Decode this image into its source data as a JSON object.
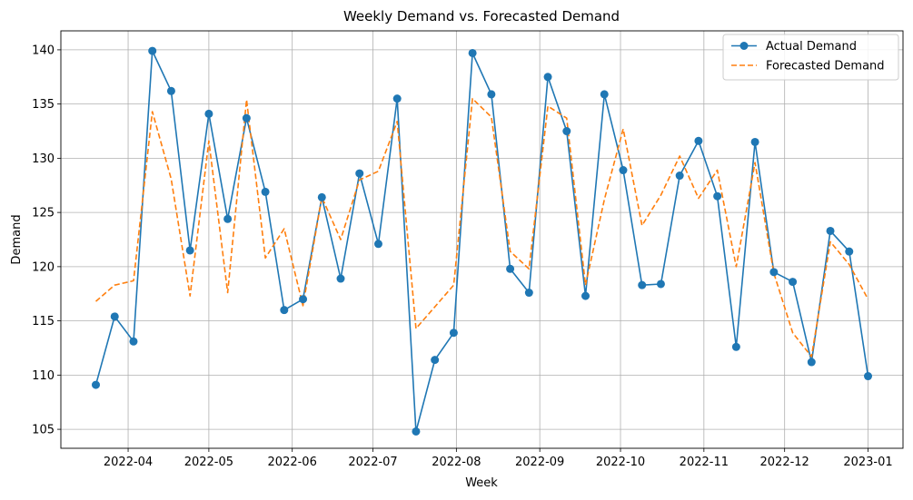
{
  "chart_data": {
    "type": "line",
    "title": "Weekly Demand vs. Forecasted Demand",
    "xlabel": "Week",
    "ylabel": "Demand",
    "x": [
      "2022-03-20",
      "2022-03-27",
      "2022-04-03",
      "2022-04-10",
      "2022-04-17",
      "2022-04-24",
      "2022-05-01",
      "2022-05-08",
      "2022-05-15",
      "2022-05-22",
      "2022-05-29",
      "2022-06-05",
      "2022-06-12",
      "2022-06-19",
      "2022-06-26",
      "2022-07-03",
      "2022-07-10",
      "2022-07-17",
      "2022-07-24",
      "2022-07-31",
      "2022-08-07",
      "2022-08-14",
      "2022-08-21",
      "2022-08-28",
      "2022-09-04",
      "2022-09-11",
      "2022-09-18",
      "2022-09-25",
      "2022-10-02",
      "2022-10-09",
      "2022-10-16",
      "2022-10-23",
      "2022-10-30",
      "2022-11-06",
      "2022-11-13",
      "2022-11-20",
      "2022-11-27",
      "2022-12-04",
      "2022-12-11",
      "2022-12-18",
      "2022-12-25",
      "2023-01-01"
    ],
    "xticks": [
      "2022-04",
      "2022-05",
      "2022-06",
      "2022-07",
      "2022-08",
      "2022-09",
      "2022-10",
      "2022-11",
      "2022-12",
      "2023-01"
    ],
    "xtick_dates": [
      "2022-04-01",
      "2022-05-01",
      "2022-06-01",
      "2022-07-01",
      "2022-08-01",
      "2022-09-01",
      "2022-10-01",
      "2022-11-01",
      "2022-12-01",
      "2023-01-01"
    ],
    "xlim": [
      "2022-03-07",
      "2023-01-14"
    ],
    "yticks": [
      105,
      110,
      115,
      120,
      125,
      130,
      135,
      140
    ],
    "ylim": [
      103.25,
      141.75
    ],
    "grid": true,
    "legend_position": "top-right",
    "series": [
      {
        "name": "Actual Demand",
        "color": "#1f77b4",
        "style": "solid-marker",
        "values": [
          109.1,
          115.4,
          113.1,
          139.9,
          136.2,
          121.5,
          134.1,
          124.4,
          133.7,
          126.9,
          116.0,
          117.0,
          126.4,
          118.9,
          128.6,
          122.1,
          135.5,
          104.8,
          111.4,
          113.9,
          139.7,
          135.9,
          119.8,
          117.6,
          137.5,
          132.5,
          117.3,
          135.9,
          128.9,
          118.3,
          118.4,
          128.4,
          131.6,
          126.5,
          112.6,
          131.5,
          119.5,
          118.6,
          111.2,
          123.3,
          121.4,
          109.9
        ]
      },
      {
        "name": "Forecasted Demand",
        "color": "#ff7f0e",
        "style": "dashed",
        "values": [
          116.8,
          118.3,
          118.7,
          134.3,
          128.1,
          117.3,
          131.6,
          117.6,
          135.4,
          120.8,
          123.5,
          116.4,
          126.4,
          122.5,
          128.0,
          128.8,
          133.4,
          114.3,
          116.3,
          118.3,
          135.5,
          133.8,
          121.4,
          119.8,
          134.8,
          133.7,
          118.3,
          126.2,
          132.7,
          123.8,
          126.6,
          130.2,
          126.3,
          128.9,
          120.0,
          129.6,
          119.4,
          113.9,
          111.7,
          122.3,
          120.2,
          117.0
        ]
      }
    ]
  }
}
